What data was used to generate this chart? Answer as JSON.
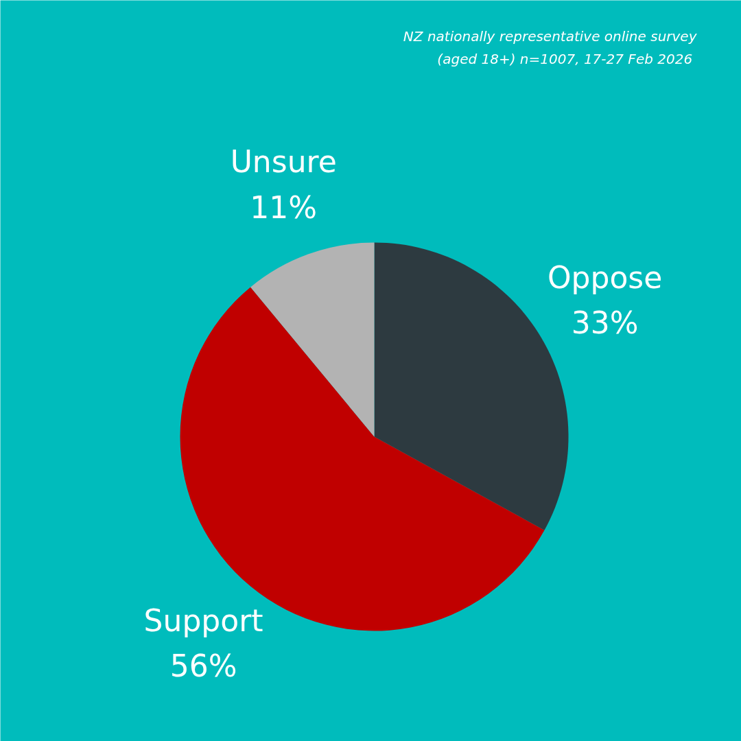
{
  "chart_data": {
    "type": "pie",
    "categories": [
      "Oppose",
      "Support",
      "Unsure"
    ],
    "values": [
      33,
      56,
      11
    ],
    "colors": [
      "#2d3a40",
      "#c00000",
      "#b3b3b3"
    ],
    "value_labels": [
      "33%",
      "56%",
      "11%"
    ],
    "annotations": [
      "NZ nationally representative online survey\n(aged 18+) n=1007,  17-27 Feb 2026"
    ],
    "legend": false
  }
}
